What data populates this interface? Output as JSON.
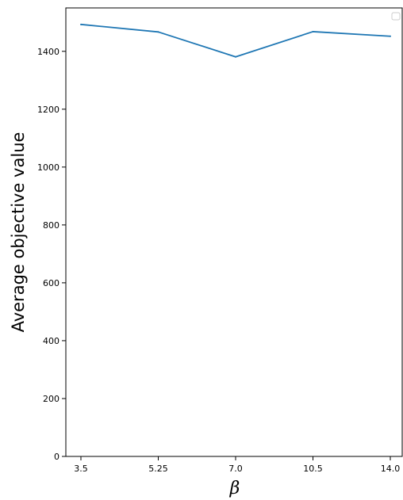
{
  "chart_data": {
    "type": "line",
    "categories": [
      "3.5",
      "5.25",
      "7.0",
      "10.5",
      "14.0"
    ],
    "series": [
      {
        "values": [
          1493,
          1467,
          1381,
          1468,
          1452
        ],
        "color": "#1f77b4"
      }
    ],
    "xlabel": "β",
    "ylabel": "Average objective value",
    "ylim": [
      0,
      1550
    ],
    "yticks": [
      0,
      200,
      400,
      600,
      800,
      1000,
      1200,
      1400
    ],
    "grid": false,
    "legend": {
      "placement": "top-right",
      "entries": []
    }
  }
}
